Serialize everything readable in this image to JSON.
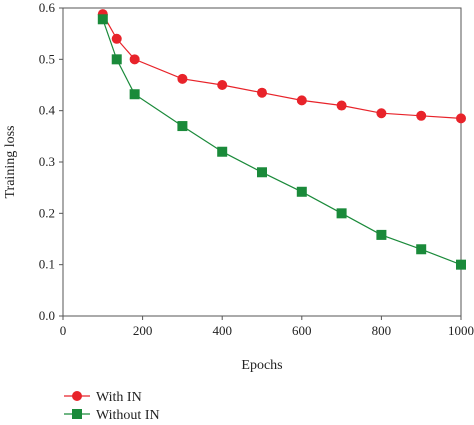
{
  "chart_data": {
    "type": "line",
    "xlabel": "Epochs",
    "ylabel": "Training loss",
    "xlim": [
      0,
      1000
    ],
    "ylim": [
      0.0,
      0.6
    ],
    "xticks": [
      "0",
      "200",
      "400",
      "600",
      "800",
      "1000"
    ],
    "yticks": [
      "0.0",
      "0.1",
      "0.2",
      "0.3",
      "0.4",
      "0.5",
      "0.6"
    ],
    "grid": false,
    "legend_position": "bottom-left",
    "series": [
      {
        "name": "With IN",
        "marker": "circle",
        "color": "#e8232a",
        "x": [
          100,
          135,
          180,
          300,
          400,
          500,
          600,
          700,
          800,
          900,
          1000
        ],
        "y": [
          0.588,
          0.54,
          0.5,
          0.462,
          0.45,
          0.435,
          0.42,
          0.41,
          0.395,
          0.39,
          0.385
        ]
      },
      {
        "name": "Without IN",
        "marker": "square",
        "color": "#1a8a3a",
        "x": [
          100,
          135,
          180,
          300,
          400,
          500,
          600,
          700,
          800,
          900,
          1000
        ],
        "y": [
          0.578,
          0.5,
          0.432,
          0.37,
          0.32,
          0.28,
          0.242,
          0.2,
          0.158,
          0.13,
          0.1
        ]
      }
    ]
  }
}
